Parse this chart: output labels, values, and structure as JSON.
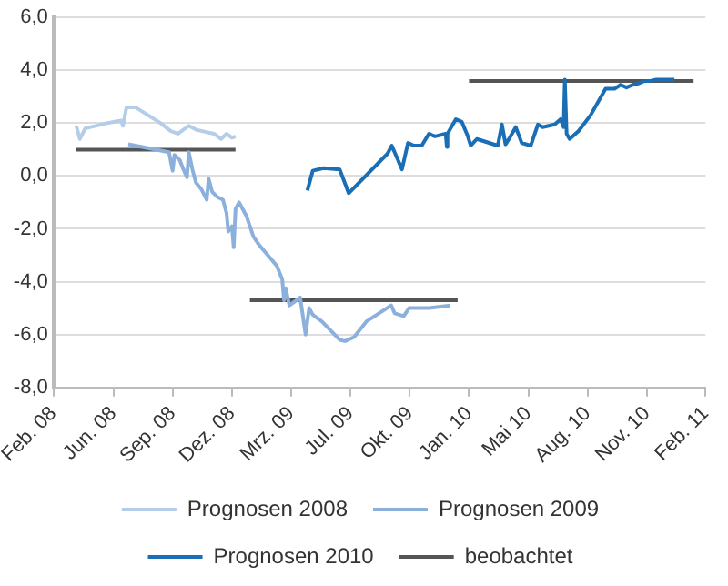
{
  "chart_data": {
    "type": "line",
    "xlim": [
      "2008-02-29",
      "2011-02-22"
    ],
    "xticks": [
      {
        "value": "2008-02-29",
        "label": "Feb. 08"
      },
      {
        "value": "2008-06-08",
        "label": "Jun. 08"
      },
      {
        "value": "2008-09-15",
        "label": "Sep. 08"
      },
      {
        "value": "2008-12-23",
        "label": "Dez. 08"
      },
      {
        "value": "2009-04-01",
        "label": "Mrz. 09"
      },
      {
        "value": "2009-07-09",
        "label": "Jul. 09"
      },
      {
        "value": "2009-10-16",
        "label": "Okt. 09"
      },
      {
        "value": "2010-01-23",
        "label": "Jan. 10"
      },
      {
        "value": "2010-05-02",
        "label": "Mai 10"
      },
      {
        "value": "2010-08-09",
        "label": "Aug. 10"
      },
      {
        "value": "2010-11-16",
        "label": "Nov. 10"
      },
      {
        "value": "2011-02-22",
        "label": "Feb. 11"
      }
    ],
    "ylim": [
      -8,
      6
    ],
    "yticks": [
      {
        "value": -8,
        "label": "-8,0"
      },
      {
        "value": -6,
        "label": "-6,0"
      },
      {
        "value": -4,
        "label": "-4,0"
      },
      {
        "value": -2,
        "label": "-2,0"
      },
      {
        "value": 0,
        "label": "0,0"
      },
      {
        "value": 2,
        "label": "2,0"
      },
      {
        "value": 4,
        "label": "4,0"
      },
      {
        "value": 6,
        "label": "6,0"
      }
    ],
    "grid": "y",
    "legend": "bottom",
    "marker": "none",
    "line_style": "solid",
    "series": [
      {
        "name": "Prognosen 2008",
        "color": "#b4cde8",
        "x": [
          "2008-04-07",
          "2008-04-13",
          "2008-04-22",
          "2008-05-28",
          "2008-06-21",
          "2008-06-24",
          "2008-06-30",
          "2008-07-15",
          "2008-08-26",
          "2008-09-12",
          "2008-09-24",
          "2008-10-12",
          "2008-10-24",
          "2008-11-23",
          "2008-12-05",
          "2008-12-14",
          "2008-12-23",
          "2008-12-29"
        ],
        "values": [
          1.9,
          1.4,
          1.8,
          2.0,
          2.1,
          1.9,
          2.6,
          2.6,
          2.0,
          1.7,
          1.6,
          1.9,
          1.75,
          1.6,
          1.4,
          1.6,
          1.45,
          1.5
        ]
      },
      {
        "name": "Prognosen 2009",
        "color": "#8cb0dc",
        "x": [
          "2008-07-03",
          "2008-09-09",
          "2008-09-15",
          "2008-09-18",
          "2008-09-27",
          "2008-10-03",
          "2008-10-09",
          "2008-10-12",
          "2008-10-18",
          "2008-10-24",
          "2008-11-02",
          "2008-11-11",
          "2008-11-14",
          "2008-11-20",
          "2008-11-29",
          "2008-12-08",
          "2008-12-14",
          "2008-12-17",
          "2008-12-23",
          "2008-12-26",
          "2008-12-29",
          "2009-01-04",
          "2009-01-10",
          "2009-01-16",
          "2009-01-28",
          "2009-02-06",
          "2009-02-21",
          "2009-03-08",
          "2009-03-17",
          "2009-03-20",
          "2009-03-23",
          "2009-03-29",
          "2009-04-07",
          "2009-04-16",
          "2009-04-25",
          "2009-05-01",
          "2009-05-07",
          "2009-05-22",
          "2009-06-21",
          "2009-06-30",
          "2009-07-15",
          "2009-08-05",
          "2009-09-15",
          "2009-09-21",
          "2009-10-06",
          "2009-10-15",
          "2009-11-17",
          "2009-12-23"
        ],
        "values": [
          1.2,
          0.9,
          0.2,
          0.8,
          0.6,
          0.25,
          -0.05,
          0.9,
          0.25,
          -0.25,
          -0.5,
          -0.9,
          -0.1,
          -0.6,
          -0.8,
          -0.9,
          -1.4,
          -2.1,
          -1.9,
          -2.7,
          -1.25,
          -1.0,
          -1.25,
          -1.5,
          -2.3,
          -2.6,
          -3.0,
          -3.4,
          -3.9,
          -4.7,
          -4.25,
          -4.9,
          -4.75,
          -4.6,
          -6.0,
          -5.0,
          -5.25,
          -5.5,
          -6.2,
          -6.25,
          -6.1,
          -5.5,
          -4.9,
          -5.2,
          -5.3,
          -5.0,
          -5.0,
          -4.9
        ]
      },
      {
        "name": "Prognosen 2010",
        "color": "#1a6eb5",
        "x": [
          "2009-04-28",
          "2009-05-07",
          "2009-05-25",
          "2009-06-21",
          "2009-07-06",
          "2009-09-09",
          "2009-09-16",
          "2009-10-03",
          "2009-10-13",
          "2009-10-23",
          "2009-11-05",
          "2009-11-17",
          "2009-11-27",
          "2009-12-15",
          "2009-12-17",
          "2009-12-18",
          "2010-01-01",
          "2010-01-11",
          "2010-01-21",
          "2010-01-26",
          "2010-02-05",
          "2010-03-12",
          "2010-03-19",
          "2010-03-25",
          "2010-04-01",
          "2010-04-11",
          "2010-04-21",
          "2010-05-06",
          "2010-05-18",
          "2010-05-26",
          "2010-06-15",
          "2010-06-25",
          "2010-06-30",
          "2010-07-02",
          "2010-07-05",
          "2010-07-10",
          "2010-07-25",
          "2010-08-14",
          "2010-09-08",
          "2010-09-23",
          "2010-10-03",
          "2010-10-13",
          "2010-10-23",
          "2010-11-02",
          "2010-11-12",
          "2010-11-22",
          "2010-12-02",
          "2010-12-22",
          "2011-01-01"
        ],
        "values": [
          -0.55,
          0.2,
          0.3,
          0.25,
          -0.65,
          0.85,
          1.15,
          0.25,
          1.25,
          1.15,
          1.15,
          1.6,
          1.5,
          1.6,
          1.1,
          1.6,
          2.15,
          2.05,
          1.5,
          1.15,
          1.4,
          1.15,
          1.95,
          1.2,
          1.45,
          1.85,
          1.25,
          1.15,
          1.95,
          1.85,
          1.95,
          2.15,
          1.85,
          3.65,
          1.6,
          1.4,
          1.7,
          2.3,
          3.3,
          3.3,
          3.45,
          3.35,
          3.45,
          3.5,
          3.6,
          3.6,
          3.65,
          3.65,
          3.65
        ]
      },
      {
        "name": "beobachtet",
        "color": "#555555",
        "x": [
          "2008-04-07",
          "2008-12-29",
          null,
          "2009-01-22",
          "2010-01-04",
          null,
          "2010-01-23",
          "2011-02-02"
        ],
        "values": [
          1.0,
          1.0,
          null,
          -4.7,
          -4.7,
          null,
          3.6,
          3.6
        ]
      }
    ]
  }
}
